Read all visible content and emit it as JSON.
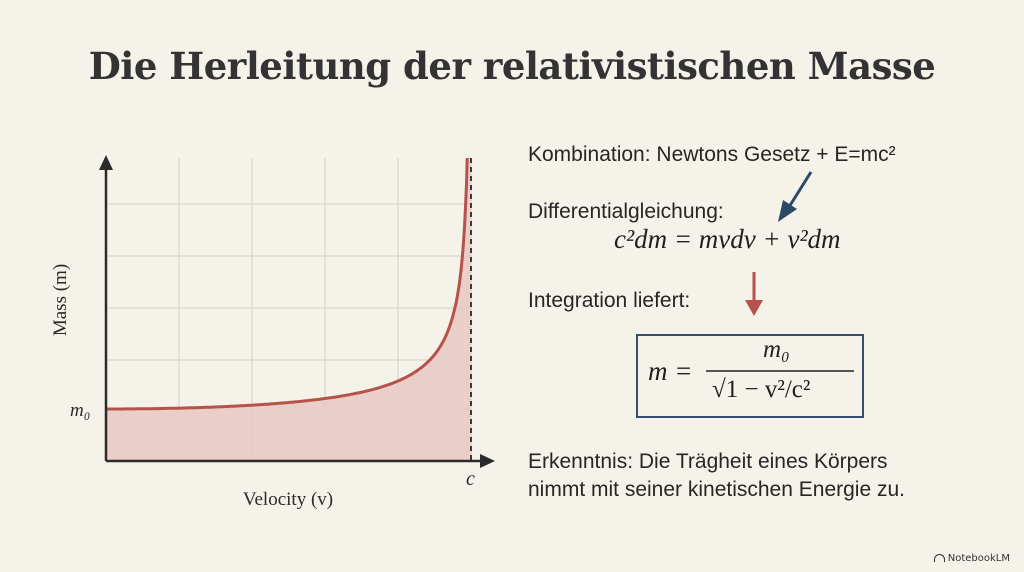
{
  "title": "Die Herleitung der relativistischen Masse",
  "chart_data": {
    "type": "area",
    "title": "",
    "xlabel": "Velocity (v)",
    "ylabel": "Mass (m)",
    "x_tick_labels": [
      "c"
    ],
    "y_tick_labels": [
      "m₀"
    ],
    "series": [
      {
        "name": "",
        "function": "m = m0 / sqrt(1 - v^2/c^2)",
        "x": [
          0,
          0.2,
          0.4,
          0.5,
          0.6,
          0.7,
          0.8,
          0.9,
          0.95,
          0.98,
          0.99
        ],
        "y": [
          1,
          1.02,
          1.09,
          1.15,
          1.25,
          1.4,
          1.67,
          2.29,
          3.2,
          5.03,
          7.09
        ]
      }
    ],
    "x_unit": "c",
    "y_unit": "m₀",
    "xlim": [
      0,
      1
    ],
    "grid": true,
    "asymptote": "v = c",
    "colors": {
      "curve": "#b5534a",
      "fill": "#e8c8c2",
      "grid": "#d3d1c8",
      "axis": "#2b2b2b"
    }
  },
  "steps": {
    "combination": "Kombination: Newtons Gesetz + E=mc²",
    "differential_label": "Differentialgleichung:",
    "differential_equation": "c²dm = mvdv + v²dm",
    "integration_label": "Integration liefert:",
    "formula_lhs": "m =",
    "formula_numerator": "m₀",
    "formula_denominator": "√1 − v²/c²",
    "insight_line1": "Erkenntnis: Die Trägheit eines Körpers",
    "insight_line2": "nimmt mit seiner kinetischen Energie zu."
  },
  "arrow_colors": {
    "blue": "#2c4a66",
    "red": "#b5534a"
  },
  "watermark": "NotebookLM"
}
